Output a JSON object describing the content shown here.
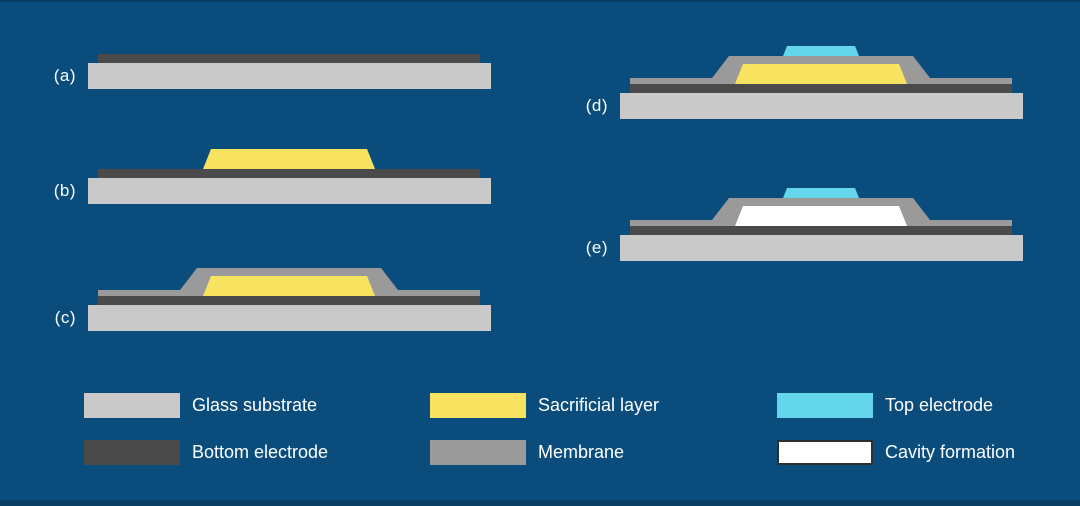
{
  "colors": {
    "background": "#0A4D7D",
    "border_strip": "#0A3F63",
    "label_text": "#FFFFFF",
    "glass_substrate": "#C9C9C9",
    "bottom_electrode": "#4A4A4A",
    "sacrificial_layer": "#F8E360",
    "membrane": "#9A9A9A",
    "top_electrode": "#63D6EC",
    "cavity_formation": "#FFFFFF",
    "cavity_border": "#2E2E2E"
  },
  "steps": [
    {
      "label": "(a)",
      "layers": [
        "glass_substrate",
        "bottom_electrode"
      ]
    },
    {
      "label": "(b)",
      "layers": [
        "glass_substrate",
        "bottom_electrode",
        "sacrificial_layer"
      ]
    },
    {
      "label": "(c)",
      "layers": [
        "glass_substrate",
        "bottom_electrode",
        "membrane",
        "sacrificial_layer"
      ]
    },
    {
      "label": "(d)",
      "layers": [
        "glass_substrate",
        "bottom_electrode",
        "membrane",
        "sacrificial_layer",
        "top_electrode"
      ]
    },
    {
      "label": "(e)",
      "layers": [
        "glass_substrate",
        "bottom_electrode",
        "membrane",
        "cavity_formation",
        "top_electrode"
      ]
    }
  ],
  "legend": [
    {
      "key": "glass_substrate",
      "label": "Glass substrate"
    },
    {
      "key": "bottom_electrode",
      "label": "Bottom electrode"
    },
    {
      "key": "sacrificial_layer",
      "label": "Sacrificial layer"
    },
    {
      "key": "membrane",
      "label": "Membrane"
    },
    {
      "key": "top_electrode",
      "label": "Top electrode"
    },
    {
      "key": "cavity_formation",
      "label": "Cavity formation"
    }
  ]
}
